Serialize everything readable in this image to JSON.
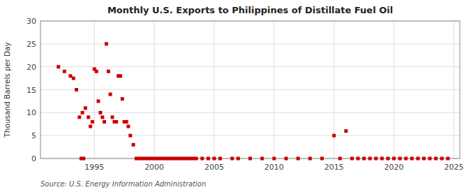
{
  "chart_data": {
    "type": "scatter",
    "title": "Monthly U.S. Exports to Philippines of Distillate Fuel Oil",
    "ylabel": "Thousand Barrels per Day",
    "source": "Source: U.S. Energy Information Administration",
    "color": "#cc0000",
    "marker": "square",
    "grid": true,
    "xlim": [
      1990.5,
      2025.5
    ],
    "ylim": [
      0,
      30
    ],
    "xticks": [
      1995,
      2000,
      2005,
      2010,
      2015,
      2020,
      2025
    ],
    "yticks": [
      0,
      5,
      10,
      15,
      20,
      25,
      30
    ],
    "x": [
      1992.0,
      1992.5,
      1993.0,
      1993.25,
      1993.5,
      1993.75,
      1994.0,
      1994.25,
      1994.5,
      1994.67,
      1994.83,
      1995.0,
      1995.17,
      1995.33,
      1995.5,
      1995.67,
      1995.83,
      1996.0,
      1996.17,
      1996.33,
      1996.5,
      1996.67,
      1996.83,
      1997.0,
      1997.17,
      1997.33,
      1997.5,
      1997.67,
      1997.83,
      1998.0,
      1998.25,
      1993.9,
      1994.1,
      1998.5,
      1998.75,
      1999.0,
      1999.25,
      1999.5,
      1999.75,
      2000.0,
      2000.25,
      2000.5,
      2000.75,
      2001.0,
      2001.25,
      2001.5,
      2001.75,
      2002.0,
      2002.25,
      2002.5,
      2002.75,
      2003.0,
      2003.25,
      2003.5,
      2004.0,
      2004.5,
      2005.0,
      2005.5,
      2006.5,
      2007.0,
      2008.0,
      2009.0,
      2010.0,
      2011.0,
      2012.0,
      2013.0,
      2014.0,
      2015.0,
      2015.5,
      2016.0,
      2016.5,
      2017.0,
      2017.5,
      2018.0,
      2018.5,
      2019.0,
      2019.5,
      2020.0,
      2020.5,
      2021.0,
      2021.5,
      2022.0,
      2022.5,
      2023.0,
      2023.5,
      2024.0,
      2024.5
    ],
    "values": [
      20.0,
      19.0,
      18.0,
      17.5,
      15.0,
      9.0,
      10.0,
      11.0,
      9.0,
      7.0,
      8.0,
      19.5,
      19.0,
      12.5,
      10.0,
      9.0,
      8.0,
      25.0,
      19.0,
      14.0,
      9.0,
      8.0,
      8.0,
      18.0,
      18.0,
      13.0,
      8.0,
      8.0,
      7.0,
      5.0,
      3.0,
      0.0,
      0.0,
      0.0,
      0.0,
      0.0,
      0.0,
      0.0,
      0.0,
      0.0,
      0.0,
      0.0,
      0.0,
      0.0,
      0.0,
      0.0,
      0.0,
      0.0,
      0.0,
      0.0,
      0.0,
      0.0,
      0.0,
      0.0,
      0.0,
      0.0,
      0.0,
      0.0,
      0.0,
      0.0,
      0.0,
      0.0,
      0.0,
      0.0,
      0.0,
      0.0,
      0.0,
      5.0,
      0.0,
      6.0,
      0.0,
      0.0,
      0.0,
      0.0,
      0.0,
      0.0,
      0.0,
      0.0,
      0.0,
      0.0,
      0.0,
      0.0,
      0.0,
      0.0,
      0.0,
      0.0,
      0.0
    ]
  }
}
